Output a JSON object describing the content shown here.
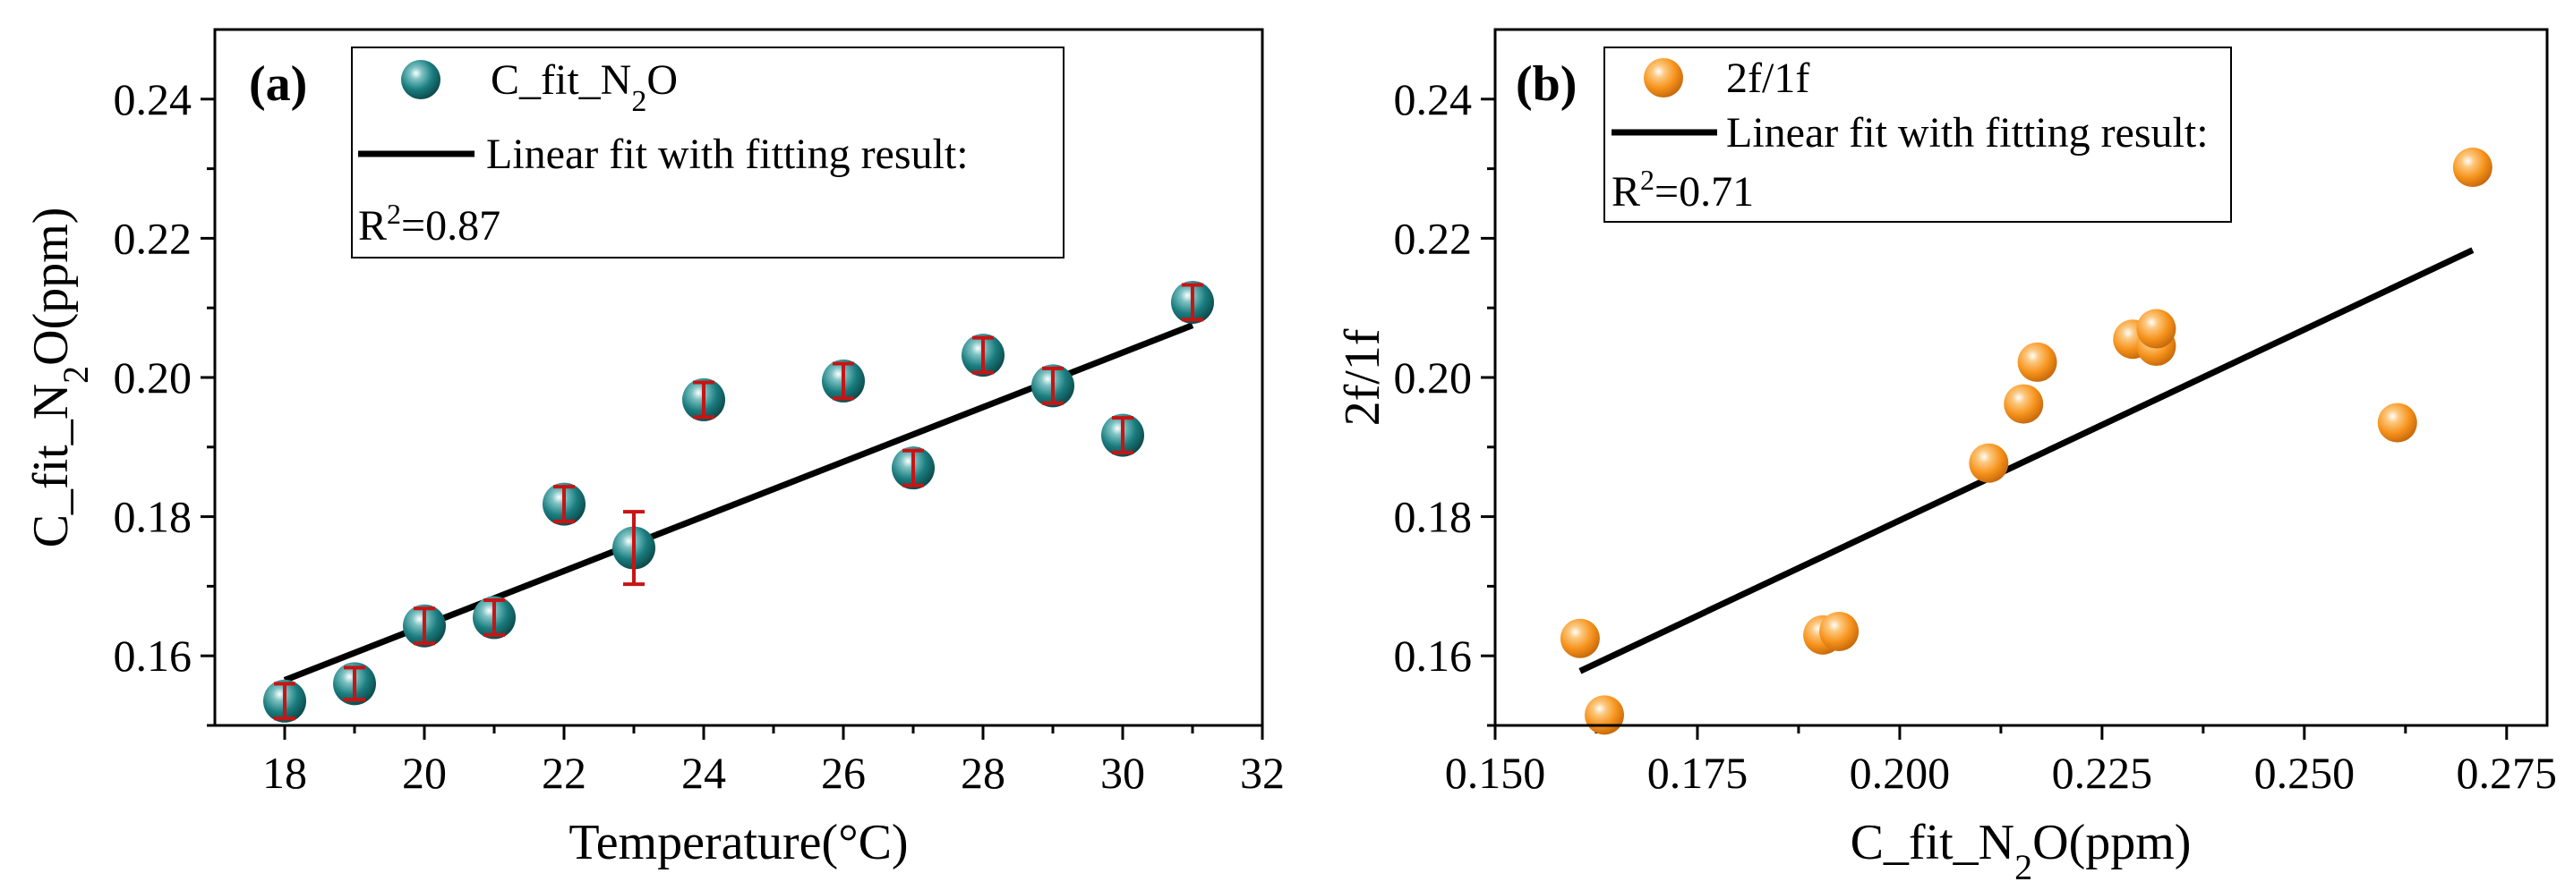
{
  "chart_data": [
    {
      "type": "scatter",
      "panel_label": "(a)",
      "xlabel": "Temperature(°C)",
      "ylabel": {
        "main": "C_fit_N",
        "sub": "2",
        "tail": "O(ppm)"
      },
      "xlim": [
        17,
        32
      ],
      "ylim": [
        0.15,
        0.25
      ],
      "xticks": [
        18,
        20,
        22,
        24,
        26,
        28,
        30,
        32
      ],
      "xtick_labels": [
        "18",
        "20",
        "22",
        "24",
        "26",
        "28",
        "30",
        "32"
      ],
      "yticks": [
        0.16,
        0.18,
        0.2,
        0.22,
        0.24
      ],
      "ytick_labels": [
        "0.16",
        "0.18",
        "0.20",
        "0.22",
        "0.24"
      ],
      "marker_color": "#1a7d7f",
      "errorbar_color": "#c81414",
      "series": [
        {
          "name": "C_fit_N2O",
          "x": [
            18,
            19,
            20,
            21,
            22,
            23,
            24,
            26,
            27,
            28,
            29,
            30,
            31
          ],
          "y": [
            0.1535,
            0.156,
            0.1643,
            0.1655,
            0.1818,
            0.1755,
            0.1968,
            0.1995,
            0.187,
            0.2032,
            0.1988,
            0.1917,
            0.2108
          ],
          "yerr": [
            0.0025,
            0.0023,
            0.0025,
            0.0025,
            0.0025,
            0.0052,
            0.0025,
            0.0025,
            0.0025,
            0.0025,
            0.0025,
            0.0025,
            0.0025
          ]
        }
      ],
      "fit_line": {
        "x": [
          18,
          31
        ],
        "y": [
          0.1565,
          0.2075
        ]
      },
      "legend": {
        "position": "top",
        "series_label": {
          "main": "C_fit_N",
          "sub": "2",
          "tail": "O"
        },
        "fit_label": "Linear fit with fitting result:",
        "r2_label": {
          "main": "R",
          "sup": "2",
          "tail": "=0.87"
        }
      }
    },
    {
      "type": "scatter",
      "panel_label": "(b)",
      "xlabel": {
        "main": "C_fit_N",
        "sub": "2",
        "tail": "O(ppm)"
      },
      "ylabel": "2f/1f",
      "xlim": [
        0.15,
        0.28
      ],
      "ylim": [
        0.15,
        0.25
      ],
      "xticks": [
        0.15,
        0.175,
        0.2,
        0.225,
        0.25,
        0.275
      ],
      "xtick_labels": [
        "0.150",
        "0.175",
        "0.200",
        "0.225",
        "0.250",
        "0.275"
      ],
      "yticks": [
        0.16,
        0.18,
        0.2,
        0.22,
        0.24
      ],
      "ytick_labels": [
        "0.16",
        "0.18",
        "0.20",
        "0.22",
        "0.24"
      ],
      "marker_color": "#f7941d",
      "series": [
        {
          "name": "2f/1f",
          "x": [
            0.1605,
            0.1635,
            0.1905,
            0.1925,
            0.211,
            0.2153,
            0.217,
            0.2288,
            0.2317,
            0.2317,
            0.2615,
            0.2708
          ],
          "y": [
            0.1625,
            0.1515,
            0.163,
            0.1635,
            0.1877,
            0.1962,
            0.2022,
            0.2055,
            0.2045,
            0.207,
            0.1935,
            0.2302
          ]
        }
      ],
      "fit_line": {
        "x": [
          0.1605,
          0.2708
        ],
        "y": [
          0.1578,
          0.2183
        ]
      },
      "legend": {
        "position": "top-left",
        "series_label": "2f/1f",
        "fit_label": "Linear fit with fitting result:",
        "r2_label": {
          "main": "R",
          "sup": "2",
          "tail": "=0.71"
        }
      }
    }
  ]
}
